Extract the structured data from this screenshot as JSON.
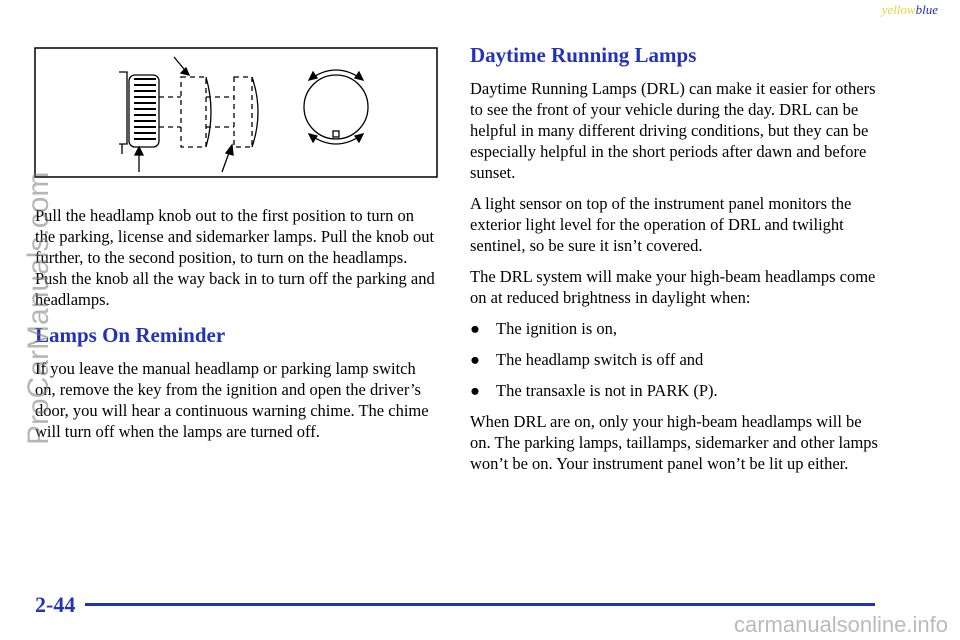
{
  "header": {
    "yellow": "yellow",
    "blue": "blue"
  },
  "left": {
    "paragraph": "Pull the headlamp knob out to the first position to turn on the parking, license and sidemarker lamps. Pull the knob out further, to the second position, to turn on the headlamps. Push the knob all the way back in to turn off the parking and headlamps.",
    "heading": "Lamps On Reminder",
    "paragraph2": "If you leave the manual headlamp or parking lamp switch on, remove the key from the ignition and open the driver’s door, you will hear a continuous warning chime. The chime will turn off when the lamps are turned off."
  },
  "right": {
    "heading": "Daytime Running Lamps",
    "paragraphs": [
      "Daytime Running Lamps (DRL) can make it easier for others to see the front of your vehicle during the day. DRL can be helpful in many different driving conditions, but they can be especially helpful in the short periods after dawn and before sunset.",
      "A light sensor on top of the instrument panel monitors the exterior light level for the operation of DRL and twilight sentinel, so be sure it isn’t covered.",
      "The DRL system will make your high-beam headlamps come on at reduced brightness in daylight when:"
    ],
    "bullets": [
      "The ignition is on,",
      "The headlamp switch is off and",
      "The transaxle is not in PARK (P)."
    ],
    "closing": "When DRL are on, only your high-beam headlamps will be on. The parking lamps, taillamps, sidemarker and other lamps won’t be on. Your instrument panel won’t be lit up either."
  },
  "footer": {
    "page_number": "2-44"
  },
  "watermarks": {
    "side": "ProCarManuals.com",
    "bottom": "carmanualsonline.info"
  }
}
